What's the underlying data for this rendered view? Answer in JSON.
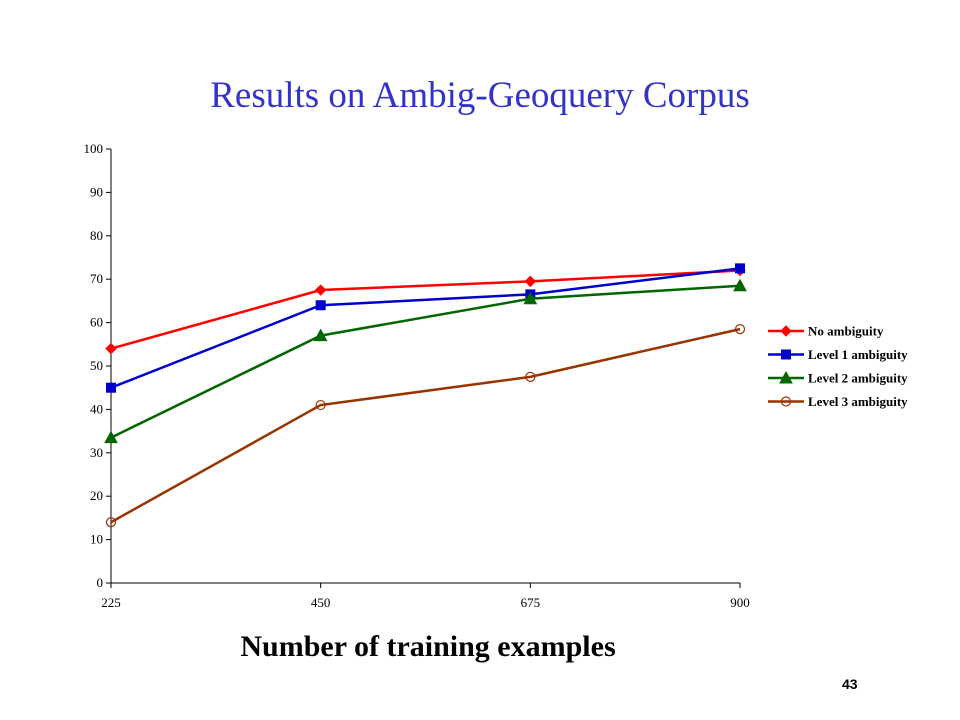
{
  "slide": {
    "title": "Results on Ambig-Geoquery Corpus",
    "page_number": "43"
  },
  "chart_data": {
    "type": "line",
    "title": "Results on Ambig-Geoquery Corpus",
    "xlabel": "Number of training examples",
    "ylabel": "",
    "x": [
      225,
      450,
      675,
      900
    ],
    "x_tick_labels": [
      "225",
      "450",
      "675",
      "900"
    ],
    "ylim": [
      0,
      100
    ],
    "y_ticks": [
      0,
      10,
      20,
      30,
      40,
      50,
      60,
      70,
      80,
      90,
      100
    ],
    "grid": false,
    "legend_position": "right",
    "series": [
      {
        "name": "No ambiguity",
        "values": [
          54,
          67.5,
          69.5,
          72
        ],
        "color": "#ff0000",
        "marker": "diamond"
      },
      {
        "name": "Level 1 ambiguity",
        "values": [
          45,
          64,
          66.5,
          72.5
        ],
        "color": "#0000cc",
        "marker": "square"
      },
      {
        "name": "Level 2 ambiguity",
        "values": [
          33.5,
          57,
          65.5,
          68.5
        ],
        "color": "#006600",
        "marker": "triangle"
      },
      {
        "name": "Level 3 ambiguity",
        "values": [
          14,
          41,
          47.5,
          58.5
        ],
        "color": "#993300",
        "marker": "circle"
      }
    ]
  }
}
